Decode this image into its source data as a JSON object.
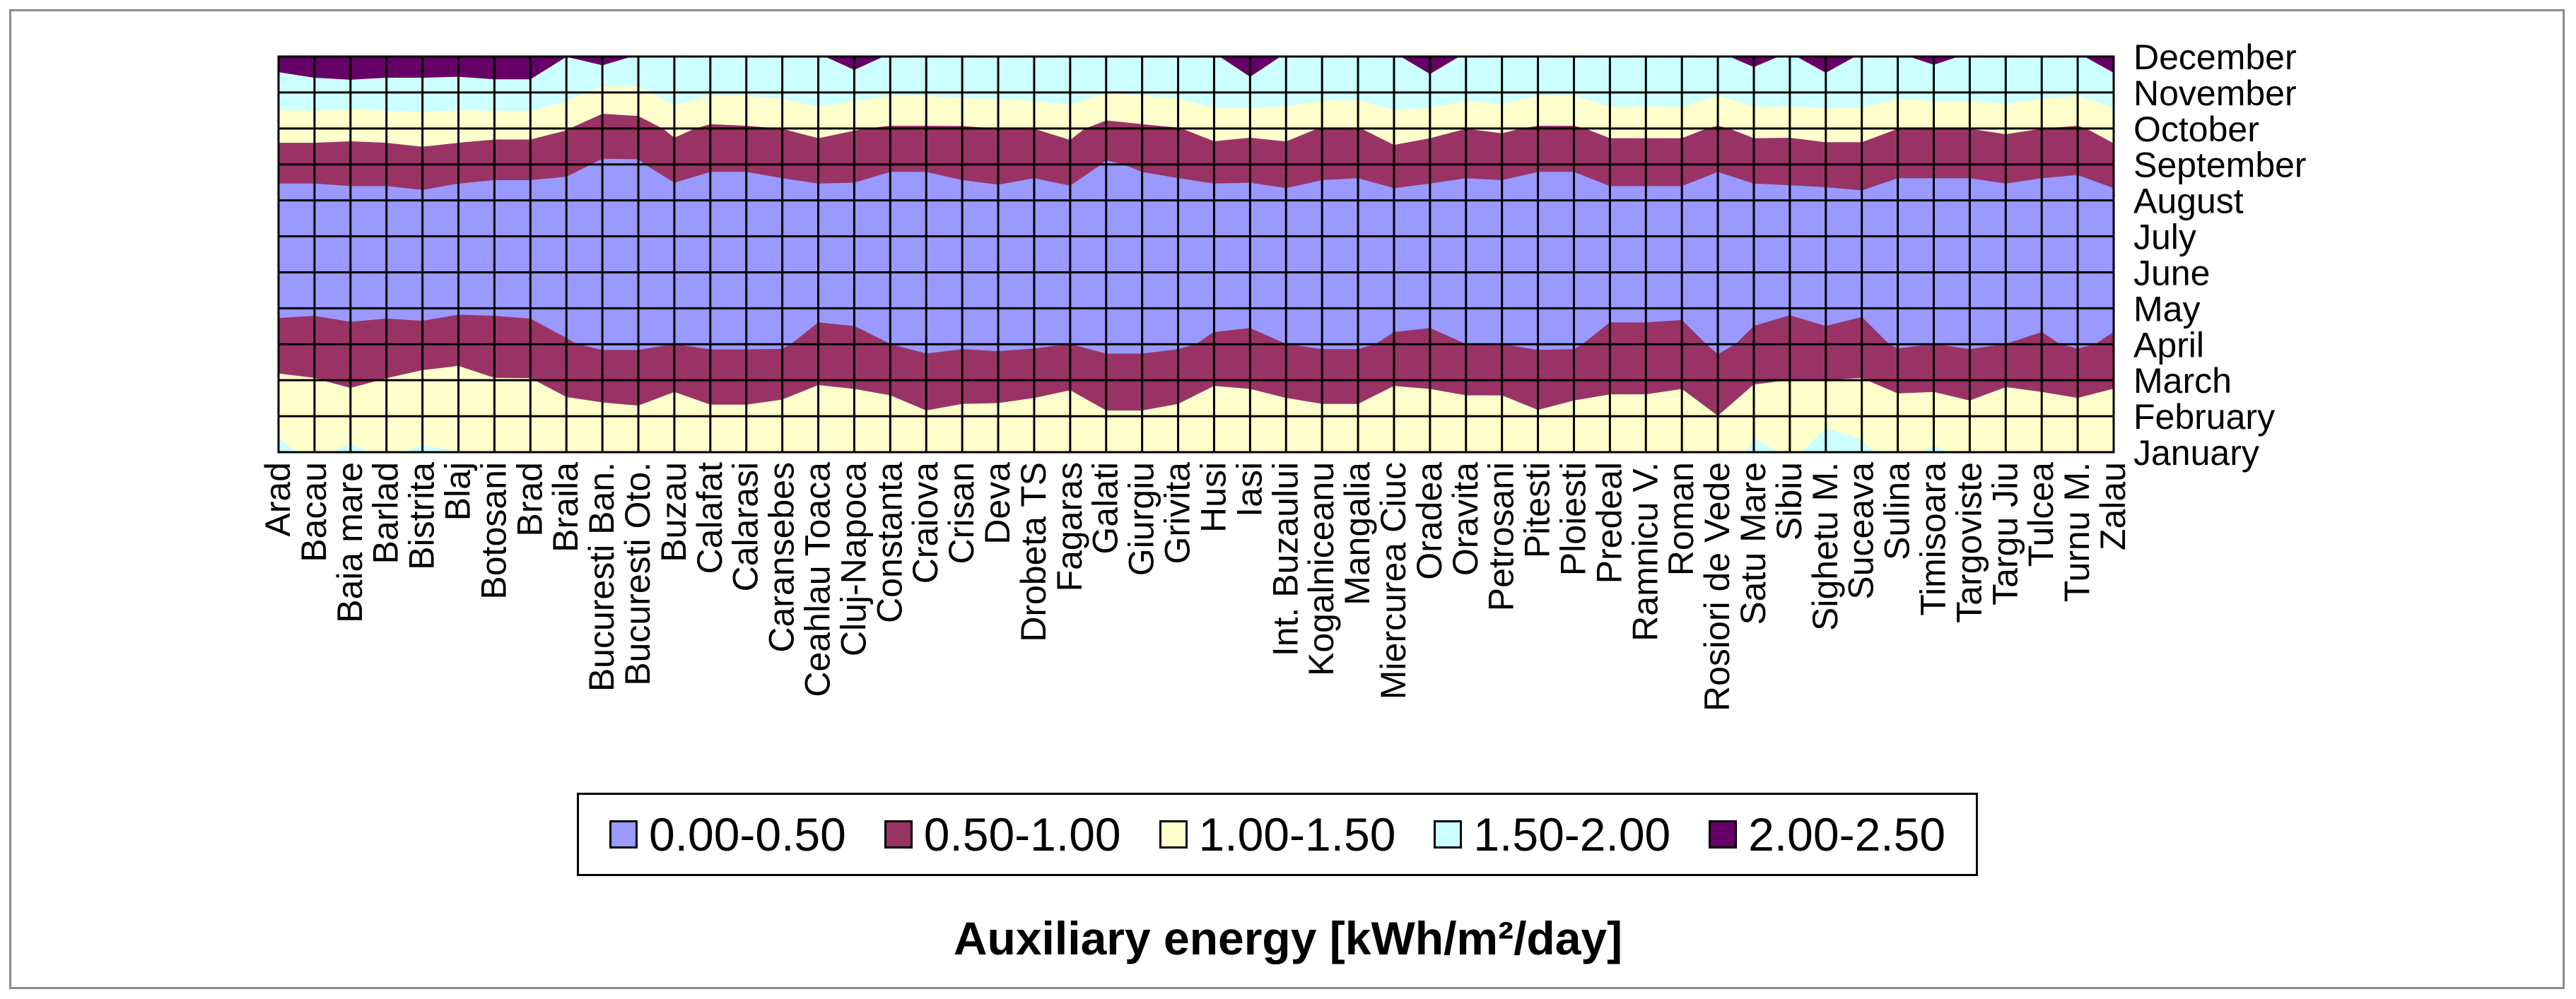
{
  "chart_data": {
    "type": "area",
    "title": "Auxiliary energy [kWh/m²/day]",
    "xlabel": "",
    "ylabel": "",
    "stations": [
      "Arad",
      "Bacau",
      "Baia mare",
      "Barlad",
      "Bistrita",
      "Blaj",
      "Botosani",
      "Brad",
      "Braila",
      "Bucuresti Ban.",
      "Bucuresti Oto.",
      "Buzau",
      "Calafat",
      "Calarasi",
      "Caransebes",
      "Ceahlau Toaca",
      "Cluj-Napoca",
      "Constanta",
      "Craiova",
      "Crisan",
      "Deva",
      "Drobeta TS",
      "Fagaras",
      "Galati",
      "Giurgiu",
      "Grivita",
      "Husi",
      "Iasi",
      "Int. Buzaului",
      "Kogalniceanu",
      "Mangalia",
      "Miercurea Ciuc",
      "Oradea",
      "Oravita",
      "Petrosani",
      "Pitesti",
      "Ploiesti",
      "Predeal",
      "Ramnicu V.",
      "Roman",
      "Rosiori de Vede",
      "Satu Mare",
      "Sibiu",
      "Sighetu M.",
      "Suceava",
      "Sulina",
      "Timisoara",
      "Targoviste",
      "Targu Jiu",
      "Tulcea",
      "Turnu M.",
      "Zalau"
    ],
    "months": [
      "January",
      "February",
      "March",
      "April",
      "May",
      "June",
      "July",
      "August",
      "September",
      "October",
      "November",
      "December"
    ],
    "value_range": [
      0,
      2.5
    ],
    "bands": [
      {
        "label": "0.00-0.50",
        "color": "#9999ff"
      },
      {
        "label": "0.50-1.00",
        "color": "#993366"
      },
      {
        "label": "1.00-1.50",
        "color": "#ffffcc"
      },
      {
        "label": "1.50-2.00",
        "color": "#ccffff"
      },
      {
        "label": "2.00-2.50",
        "color": "#660066"
      }
    ],
    "values": [
      [
        1.55,
        1.42,
        1.08,
        0.63,
        0.45,
        0.3,
        0.25,
        0.3,
        0.72,
        1.18,
        1.8,
        2.15
      ],
      [
        1.45,
        1.3,
        1.02,
        0.68,
        0.45,
        0.3,
        0.25,
        0.3,
        0.72,
        1.18,
        1.82,
        2.25
      ],
      [
        1.55,
        1.35,
        0.9,
        0.58,
        0.45,
        0.3,
        0.25,
        0.35,
        0.72,
        1.15,
        1.8,
        2.35
      ],
      [
        1.45,
        1.35,
        1.02,
        0.62,
        0.45,
        0.3,
        0.25,
        0.35,
        0.72,
        1.18,
        1.82,
        2.25
      ],
      [
        1.55,
        1.3,
        1.12,
        0.68,
        0.4,
        0.3,
        0.25,
        0.38,
        0.78,
        1.22,
        1.82,
        2.25
      ],
      [
        1.5,
        1.42,
        1.18,
        0.72,
        0.45,
        0.3,
        0.25,
        0.3,
        0.72,
        1.18,
        1.8,
        2.25
      ],
      [
        1.4,
        1.35,
        1.02,
        0.68,
        0.45,
        0.3,
        0.25,
        0.3,
        0.65,
        1.15,
        1.85,
        2.25
      ],
      [
        1.38,
        1.32,
        1.02,
        0.62,
        0.45,
        0.3,
        0.25,
        0.3,
        0.65,
        1.15,
        1.85,
        2.25
      ],
      [
        1.28,
        1.2,
        0.82,
        0.52,
        0.4,
        0.3,
        0.25,
        0.3,
        0.6,
        1.02,
        1.65,
        2.0
      ],
      [
        1.3,
        1.15,
        0.75,
        0.45,
        0.35,
        0.25,
        0.25,
        0.3,
        0.45,
        0.75,
        1.35,
        2.2
      ],
      [
        1.3,
        1.1,
        0.75,
        0.45,
        0.35,
        0.25,
        0.25,
        0.3,
        0.45,
        0.78,
        1.4,
        1.95
      ],
      [
        1.35,
        1.2,
        0.9,
        0.5,
        0.4,
        0.3,
        0.25,
        0.3,
        0.7,
        1.1,
        1.7,
        1.95
      ],
      [
        1.25,
        1.1,
        0.78,
        0.45,
        0.35,
        0.25,
        0.25,
        0.3,
        0.55,
        0.92,
        1.55,
        1.95
      ],
      [
        1.25,
        1.1,
        0.78,
        0.45,
        0.35,
        0.25,
        0.25,
        0.3,
        0.55,
        0.95,
        1.55,
        1.95
      ],
      [
        1.3,
        1.15,
        0.82,
        0.45,
        0.35,
        0.25,
        0.25,
        0.3,
        0.62,
        1.0,
        1.6,
        1.95
      ],
      [
        1.4,
        1.3,
        0.95,
        0.65,
        0.4,
        0.3,
        0.25,
        0.3,
        0.72,
        1.1,
        1.75,
        1.95
      ],
      [
        1.45,
        1.3,
        0.9,
        0.6,
        0.4,
        0.3,
        0.25,
        0.35,
        0.65,
        1.02,
        1.65,
        2.2
      ],
      [
        1.35,
        1.2,
        0.85,
        0.5,
        0.4,
        0.3,
        0.25,
        0.3,
        0.55,
        0.95,
        1.55,
        1.95
      ],
      [
        1.2,
        1.05,
        0.72,
        0.42,
        0.35,
        0.25,
        0.25,
        0.3,
        0.55,
        0.95,
        1.55,
        1.95
      ],
      [
        1.3,
        1.1,
        0.8,
        0.45,
        0.35,
        0.25,
        0.25,
        0.3,
        0.65,
        0.95,
        1.6,
        1.95
      ],
      [
        1.3,
        1.1,
        0.82,
        0.42,
        0.35,
        0.25,
        0.25,
        0.3,
        0.75,
        1.0,
        1.6,
        1.95
      ],
      [
        1.35,
        1.15,
        0.85,
        0.45,
        0.35,
        0.25,
        0.25,
        0.3,
        0.62,
        1.0,
        1.65,
        1.95
      ],
      [
        1.35,
        1.2,
        0.92,
        0.5,
        0.4,
        0.3,
        0.25,
        0.3,
        0.78,
        1.1,
        1.7,
        1.95
      ],
      [
        1.25,
        1.05,
        0.72,
        0.42,
        0.35,
        0.25,
        0.25,
        0.3,
        0.45,
        0.85,
        1.5,
        1.95
      ],
      [
        1.25,
        1.05,
        0.72,
        0.42,
        0.35,
        0.25,
        0.25,
        0.3,
        0.55,
        0.92,
        1.55,
        1.95
      ],
      [
        1.3,
        1.1,
        0.8,
        0.45,
        0.35,
        0.25,
        0.25,
        0.3,
        0.62,
        0.98,
        1.6,
        1.95
      ],
      [
        1.4,
        1.25,
        0.95,
        0.55,
        0.4,
        0.3,
        0.25,
        0.3,
        0.72,
        1.15,
        1.75,
        1.95
      ],
      [
        1.45,
        1.3,
        0.9,
        0.58,
        0.4,
        0.3,
        0.25,
        0.3,
        0.7,
        1.1,
        1.8,
        2.25
      ],
      [
        1.35,
        1.15,
        0.85,
        0.5,
        0.4,
        0.3,
        0.25,
        0.35,
        0.78,
        1.12,
        1.72,
        1.95
      ],
      [
        1.3,
        1.1,
        0.8,
        0.45,
        0.35,
        0.25,
        0.25,
        0.3,
        0.65,
        0.98,
        1.65,
        1.95
      ],
      [
        1.3,
        1.1,
        0.8,
        0.45,
        0.35,
        0.25,
        0.25,
        0.3,
        0.62,
        0.98,
        1.62,
        1.95
      ],
      [
        1.45,
        1.25,
        0.95,
        0.55,
        0.4,
        0.3,
        0.25,
        0.35,
        0.78,
        1.18,
        1.8,
        1.95
      ],
      [
        1.45,
        1.3,
        0.9,
        0.58,
        0.4,
        0.3,
        0.25,
        0.3,
        0.72,
        1.1,
        1.78,
        2.2
      ],
      [
        1.35,
        1.2,
        0.85,
        0.5,
        0.4,
        0.3,
        0.25,
        0.3,
        0.62,
        1.0,
        1.65,
        1.95
      ],
      [
        1.35,
        1.2,
        0.85,
        0.5,
        0.4,
        0.3,
        0.25,
        0.3,
        0.65,
        1.05,
        1.7,
        1.95
      ],
      [
        1.25,
        1.05,
        0.75,
        0.45,
        0.35,
        0.25,
        0.25,
        0.3,
        0.55,
        0.95,
        1.55,
        1.95
      ],
      [
        1.3,
        1.15,
        0.8,
        0.45,
        0.35,
        0.25,
        0.25,
        0.3,
        0.55,
        0.95,
        1.55,
        1.95
      ],
      [
        1.3,
        1.15,
        0.9,
        0.65,
        0.4,
        0.3,
        0.25,
        0.35,
        0.72,
        1.1,
        1.75,
        1.95
      ],
      [
        1.3,
        1.15,
        0.9,
        0.65,
        0.4,
        0.3,
        0.25,
        0.35,
        0.72,
        1.1,
        1.75,
        1.95
      ],
      [
        1.35,
        1.15,
        0.95,
        0.7,
        0.4,
        0.3,
        0.25,
        0.35,
        0.72,
        1.1,
        1.75,
        1.95
      ],
      [
        1.15,
        1.0,
        0.75,
        0.4,
        0.35,
        0.25,
        0.25,
        0.3,
        0.55,
        0.95,
        1.55,
        1.95
      ],
      [
        1.6,
        1.35,
        0.95,
        0.6,
        0.4,
        0.3,
        0.25,
        0.3,
        0.72,
        1.1,
        1.75,
        2.1
      ],
      [
        1.45,
        1.3,
        1.0,
        0.7,
        0.45,
        0.3,
        0.25,
        0.35,
        0.7,
        1.1,
        1.75,
        1.95
      ],
      [
        1.6,
        1.45,
        1.0,
        0.55,
        0.45,
        0.3,
        0.25,
        0.35,
        0.75,
        1.15,
        1.75,
        2.2
      ],
      [
        1.55,
        1.4,
        1.02,
        0.65,
        0.45,
        0.3,
        0.25,
        0.4,
        0.75,
        1.15,
        1.75,
        1.95
      ],
      [
        1.4,
        1.25,
        0.85,
        0.45,
        0.4,
        0.25,
        0.25,
        0.3,
        0.62,
        1.0,
        1.6,
        1.95
      ],
      [
        1.55,
        1.3,
        0.85,
        0.5,
        0.4,
        0.3,
        0.25,
        0.3,
        0.62,
        1.0,
        1.65,
        2.1
      ],
      [
        1.4,
        1.15,
        0.8,
        0.45,
        0.35,
        0.25,
        0.25,
        0.3,
        0.62,
        1.0,
        1.65,
        1.95
      ],
      [
        1.35,
        1.2,
        0.95,
        0.5,
        0.4,
        0.3,
        0.25,
        0.3,
        0.72,
        1.05,
        1.7,
        1.95
      ],
      [
        1.35,
        1.2,
        0.9,
        0.55,
        0.4,
        0.3,
        0.25,
        0.3,
        0.62,
        1.0,
        1.6,
        1.95
      ],
      [
        1.3,
        1.15,
        0.85,
        0.45,
        0.35,
        0.25,
        0.25,
        0.3,
        0.58,
        0.95,
        1.55,
        1.95
      ],
      [
        1.45,
        1.25,
        0.92,
        0.55,
        0.4,
        0.3,
        0.25,
        0.35,
        0.78,
        1.15,
        1.75,
        2.2
      ]
    ]
  }
}
